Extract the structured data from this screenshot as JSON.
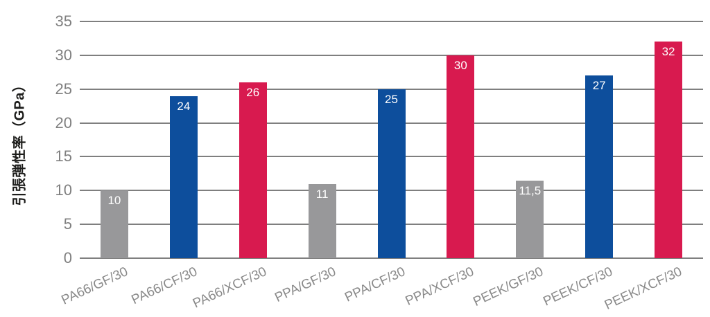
{
  "chart_data": {
    "type": "bar",
    "title": "",
    "xlabel": "",
    "ylabel": "引張弾性率（GPa）",
    "ylim": [
      0,
      35
    ],
    "yticks": [
      0,
      5,
      10,
      15,
      20,
      25,
      30,
      35
    ],
    "grid": true,
    "legend_position": "none",
    "categories": [
      "PA66/GF/30",
      "PA66/CF/30",
      "PA66/XCF/30",
      "PPA/GF/30",
      "PPA/CF/30",
      "PPA/XCF/30",
      "PEEK/GF/30",
      "PEEK/CF/30",
      "PEEK/XCF/30"
    ],
    "values": [
      10,
      24,
      26,
      11,
      25,
      30,
      11.5,
      27,
      32
    ],
    "value_labels": [
      "10",
      "24",
      "26",
      "11",
      "25",
      "30",
      "11,5",
      "27",
      "32"
    ],
    "series_color_pattern": [
      "#98989a",
      "#0d4e9c",
      "#d81a4f"
    ],
    "colors": {
      "gray_bar": "#98989a",
      "blue_bar": "#0d4e9c",
      "red_bar": "#d81a4f",
      "gridline": "#7f7f7f",
      "tick_text": "#7f7f7f",
      "x_label_text": "#8a8a8a",
      "y_title_text": "#1d1d1b",
      "value_label_text": "#ffffff",
      "background": "#ffffff"
    }
  }
}
